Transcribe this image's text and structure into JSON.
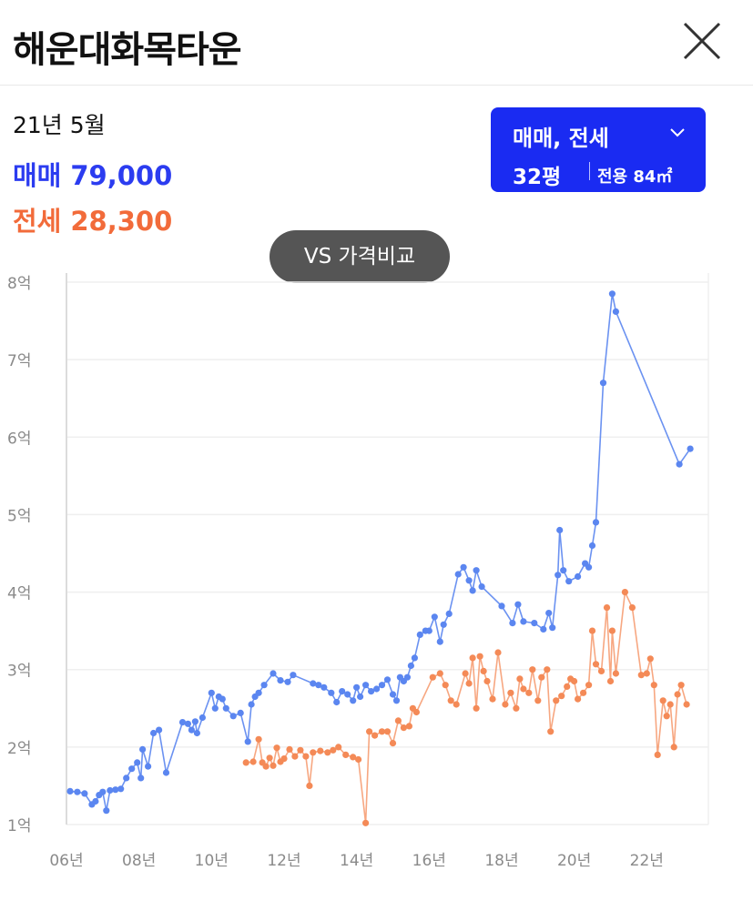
{
  "header": {
    "title": "해운대화목타운"
  },
  "summary": {
    "date": "21년 5월",
    "sale_label": "매매",
    "sale_value": "79,000",
    "jeonse_label": "전세",
    "jeonse_value": "28,300"
  },
  "selector": {
    "type": "매매, 전세",
    "size": "32평",
    "area": "전용 84㎡"
  },
  "compare_button": "VS 가격비교",
  "colors": {
    "sale": "#2b3cf0",
    "jeonse": "#f26b3a",
    "sale_line": "#5b86f0",
    "jeonse_line": "#f48a57"
  },
  "chart_data": {
    "type": "line",
    "y_unit": "억",
    "ylim": [
      1,
      8
    ],
    "xlim": [
      2006,
      2023.7
    ],
    "y_ticks": [
      "1억",
      "2억",
      "3억",
      "4억",
      "5억",
      "6억",
      "7억",
      "8억"
    ],
    "x_ticks": [
      "06년",
      "08년",
      "10년",
      "12년",
      "14년",
      "16년",
      "18년",
      "20년",
      "22년"
    ],
    "series": [
      {
        "name": "매매",
        "points": [
          [
            2006.1,
            1.43
          ],
          [
            2006.3,
            1.42
          ],
          [
            2006.5,
            1.4
          ],
          [
            2006.7,
            1.26
          ],
          [
            2006.8,
            1.3
          ],
          [
            2006.9,
            1.38
          ],
          [
            2007.0,
            1.42
          ],
          [
            2007.1,
            1.18
          ],
          [
            2007.2,
            1.44
          ],
          [
            2007.35,
            1.45
          ],
          [
            2007.5,
            1.46
          ],
          [
            2007.65,
            1.6
          ],
          [
            2007.8,
            1.72
          ],
          [
            2007.95,
            1.8
          ],
          [
            2008.05,
            1.6
          ],
          [
            2008.1,
            1.97
          ],
          [
            2008.25,
            1.75
          ],
          [
            2008.4,
            2.18
          ],
          [
            2008.55,
            2.22
          ],
          [
            2008.75,
            1.67
          ],
          [
            2009.2,
            2.32
          ],
          [
            2009.35,
            2.3
          ],
          [
            2009.45,
            2.22
          ],
          [
            2009.55,
            2.33
          ],
          [
            2009.6,
            2.18
          ],
          [
            2009.75,
            2.38
          ],
          [
            2010.0,
            2.7
          ],
          [
            2010.1,
            2.5
          ],
          [
            2010.2,
            2.65
          ],
          [
            2010.3,
            2.62
          ],
          [
            2010.4,
            2.5
          ],
          [
            2010.6,
            2.4
          ],
          [
            2010.8,
            2.44
          ],
          [
            2011.0,
            2.07
          ],
          [
            2011.1,
            2.55
          ],
          [
            2011.2,
            2.65
          ],
          [
            2011.3,
            2.7
          ],
          [
            2011.45,
            2.8
          ],
          [
            2011.7,
            2.95
          ],
          [
            2011.9,
            2.86
          ],
          [
            2012.1,
            2.84
          ],
          [
            2012.25,
            2.93
          ],
          [
            2012.8,
            2.82
          ],
          [
            2012.95,
            2.8
          ],
          [
            2013.1,
            2.77
          ],
          [
            2013.3,
            2.7
          ],
          [
            2013.45,
            2.58
          ],
          [
            2013.6,
            2.72
          ],
          [
            2013.75,
            2.68
          ],
          [
            2013.9,
            2.6
          ],
          [
            2014.0,
            2.77
          ],
          [
            2014.1,
            2.65
          ],
          [
            2014.25,
            2.8
          ],
          [
            2014.4,
            2.72
          ],
          [
            2014.55,
            2.75
          ],
          [
            2014.7,
            2.8
          ],
          [
            2014.85,
            2.87
          ],
          [
            2015.0,
            2.68
          ],
          [
            2015.1,
            2.6
          ],
          [
            2015.2,
            2.9
          ],
          [
            2015.3,
            2.85
          ],
          [
            2015.4,
            2.9
          ],
          [
            2015.5,
            3.05
          ],
          [
            2015.6,
            3.15
          ],
          [
            2015.75,
            3.45
          ],
          [
            2015.9,
            3.5
          ],
          [
            2016.0,
            3.5
          ],
          [
            2016.15,
            3.68
          ],
          [
            2016.3,
            3.36
          ],
          [
            2016.4,
            3.58
          ],
          [
            2016.55,
            3.72
          ],
          [
            2016.8,
            4.23
          ],
          [
            2016.95,
            4.32
          ],
          [
            2017.1,
            4.15
          ],
          [
            2017.2,
            4.02
          ],
          [
            2017.3,
            4.28
          ],
          [
            2017.45,
            4.07
          ],
          [
            2018.0,
            3.82
          ],
          [
            2018.3,
            3.6
          ],
          [
            2018.45,
            3.84
          ],
          [
            2018.6,
            3.62
          ],
          [
            2018.9,
            3.6
          ],
          [
            2019.15,
            3.52
          ],
          [
            2019.3,
            3.73
          ],
          [
            2019.4,
            3.54
          ],
          [
            2019.55,
            4.22
          ],
          [
            2019.6,
            4.8
          ],
          [
            2019.7,
            4.28
          ],
          [
            2019.85,
            4.14
          ],
          [
            2020.1,
            4.2
          ],
          [
            2020.3,
            4.37
          ],
          [
            2020.4,
            4.32
          ],
          [
            2020.5,
            4.6
          ],
          [
            2020.6,
            4.9
          ],
          [
            2020.8,
            6.7
          ],
          [
            2021.05,
            7.85
          ],
          [
            2021.15,
            7.62
          ],
          [
            2022.9,
            5.65
          ],
          [
            2023.2,
            5.85
          ]
        ]
      },
      {
        "name": "전세",
        "points": [
          [
            2010.95,
            1.8
          ],
          [
            2011.15,
            1.81
          ],
          [
            2011.3,
            2.1
          ],
          [
            2011.4,
            1.8
          ],
          [
            2011.5,
            1.75
          ],
          [
            2011.6,
            1.86
          ],
          [
            2011.7,
            1.76
          ],
          [
            2011.8,
            1.99
          ],
          [
            2011.9,
            1.81
          ],
          [
            2012.0,
            1.85
          ],
          [
            2012.15,
            1.97
          ],
          [
            2012.3,
            1.88
          ],
          [
            2012.45,
            1.96
          ],
          [
            2012.6,
            1.88
          ],
          [
            2012.7,
            1.5
          ],
          [
            2012.8,
            1.93
          ],
          [
            2013.0,
            1.95
          ],
          [
            2013.2,
            1.93
          ],
          [
            2013.35,
            1.96
          ],
          [
            2013.5,
            2.0
          ],
          [
            2013.7,
            1.9
          ],
          [
            2013.9,
            1.87
          ],
          [
            2014.05,
            1.84
          ],
          [
            2014.25,
            1.02
          ],
          [
            2014.35,
            2.2
          ],
          [
            2014.5,
            2.15
          ],
          [
            2014.7,
            2.2
          ],
          [
            2014.85,
            2.2
          ],
          [
            2015.0,
            2.05
          ],
          [
            2015.15,
            2.34
          ],
          [
            2015.3,
            2.25
          ],
          [
            2015.45,
            2.27
          ],
          [
            2015.55,
            2.5
          ],
          [
            2015.65,
            2.45
          ],
          [
            2016.1,
            2.9
          ],
          [
            2016.3,
            2.95
          ],
          [
            2016.45,
            2.8
          ],
          [
            2016.6,
            2.6
          ],
          [
            2016.75,
            2.55
          ],
          [
            2017.0,
            2.95
          ],
          [
            2017.1,
            2.82
          ],
          [
            2017.2,
            3.15
          ],
          [
            2017.3,
            2.5
          ],
          [
            2017.4,
            3.17
          ],
          [
            2017.5,
            2.98
          ],
          [
            2017.6,
            2.85
          ],
          [
            2017.75,
            2.62
          ],
          [
            2017.9,
            3.22
          ],
          [
            2018.1,
            2.55
          ],
          [
            2018.25,
            2.7
          ],
          [
            2018.4,
            2.5
          ],
          [
            2018.5,
            2.88
          ],
          [
            2018.6,
            2.75
          ],
          [
            2018.75,
            2.7
          ],
          [
            2018.85,
            3.0
          ],
          [
            2019.0,
            2.6
          ],
          [
            2019.1,
            2.9
          ],
          [
            2019.25,
            3.0
          ],
          [
            2019.35,
            2.2
          ],
          [
            2019.5,
            2.6
          ],
          [
            2019.65,
            2.66
          ],
          [
            2019.8,
            2.78
          ],
          [
            2019.9,
            2.88
          ],
          [
            2020.0,
            2.85
          ],
          [
            2020.1,
            2.62
          ],
          [
            2020.25,
            2.7
          ],
          [
            2020.4,
            2.8
          ],
          [
            2020.5,
            3.5
          ],
          [
            2020.6,
            3.07
          ],
          [
            2020.75,
            2.98
          ],
          [
            2020.9,
            3.8
          ],
          [
            2021.0,
            2.85
          ],
          [
            2021.05,
            3.5
          ],
          [
            2021.15,
            2.95
          ],
          [
            2021.4,
            4.0
          ],
          [
            2021.6,
            3.8
          ],
          [
            2021.85,
            2.93
          ],
          [
            2022.0,
            2.95
          ],
          [
            2022.1,
            3.14
          ],
          [
            2022.2,
            2.8
          ],
          [
            2022.3,
            1.9
          ],
          [
            2022.45,
            2.6
          ],
          [
            2022.55,
            2.4
          ],
          [
            2022.65,
            2.55
          ],
          [
            2022.75,
            2.0
          ],
          [
            2022.85,
            2.68
          ],
          [
            2022.95,
            2.8
          ],
          [
            2023.1,
            2.55
          ]
        ]
      }
    ]
  }
}
